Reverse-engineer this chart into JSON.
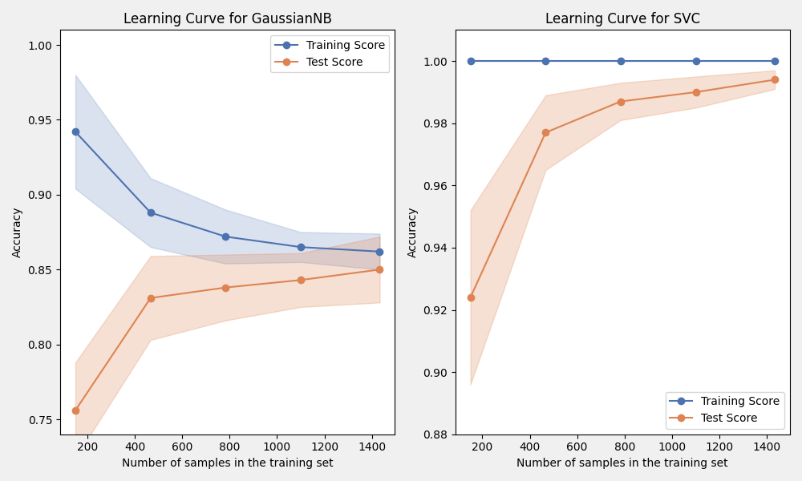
{
  "title1": "Learning Curve for GaussianNB",
  "title2": "Learning Curve for SVC",
  "xlabel": "Number of samples in the training set",
  "ylabel": "Accuracy",
  "train_label": "Training Score",
  "test_label": "Test Score",
  "train_color": "#4c72b0",
  "test_color": "#dd8452",
  "train_fill_alpha": 0.2,
  "test_fill_alpha": 0.25,
  "gnb_x": [
    150,
    467,
    783,
    1100,
    1433
  ],
  "gnb_train_mean": [
    0.942,
    0.888,
    0.872,
    0.865,
    0.862
  ],
  "gnb_train_std": [
    0.038,
    0.023,
    0.018,
    0.01,
    0.012
  ],
  "gnb_test_mean": [
    0.756,
    0.831,
    0.838,
    0.843,
    0.85
  ],
  "gnb_test_std": [
    0.032,
    0.028,
    0.022,
    0.018,
    0.022
  ],
  "svc_x": [
    150,
    467,
    783,
    1100,
    1433
  ],
  "svc_train_mean": [
    1.0,
    1.0,
    1.0,
    1.0,
    1.0
  ],
  "svc_train_std": [
    0.0,
    0.0,
    0.0,
    0.0,
    0.0
  ],
  "svc_test_mean": [
    0.924,
    0.977,
    0.987,
    0.99,
    0.994
  ],
  "svc_test_std": [
    0.028,
    0.012,
    0.006,
    0.005,
    0.003
  ],
  "gnb_ylim": [
    0.74,
    1.01
  ],
  "svc_ylim": [
    0.88,
    1.01
  ],
  "gnb_yticks": [
    0.75,
    0.8,
    0.85,
    0.9,
    0.95,
    1.0
  ],
  "svc_yticks": [
    0.9,
    0.92,
    0.94,
    0.96,
    0.98,
    1.0
  ],
  "xticks": [
    200,
    400,
    600,
    800,
    1000,
    1200,
    1400
  ],
  "legend1_loc": "upper right",
  "legend2_loc": "lower right",
  "fig_bg": "#f0f0f0"
}
